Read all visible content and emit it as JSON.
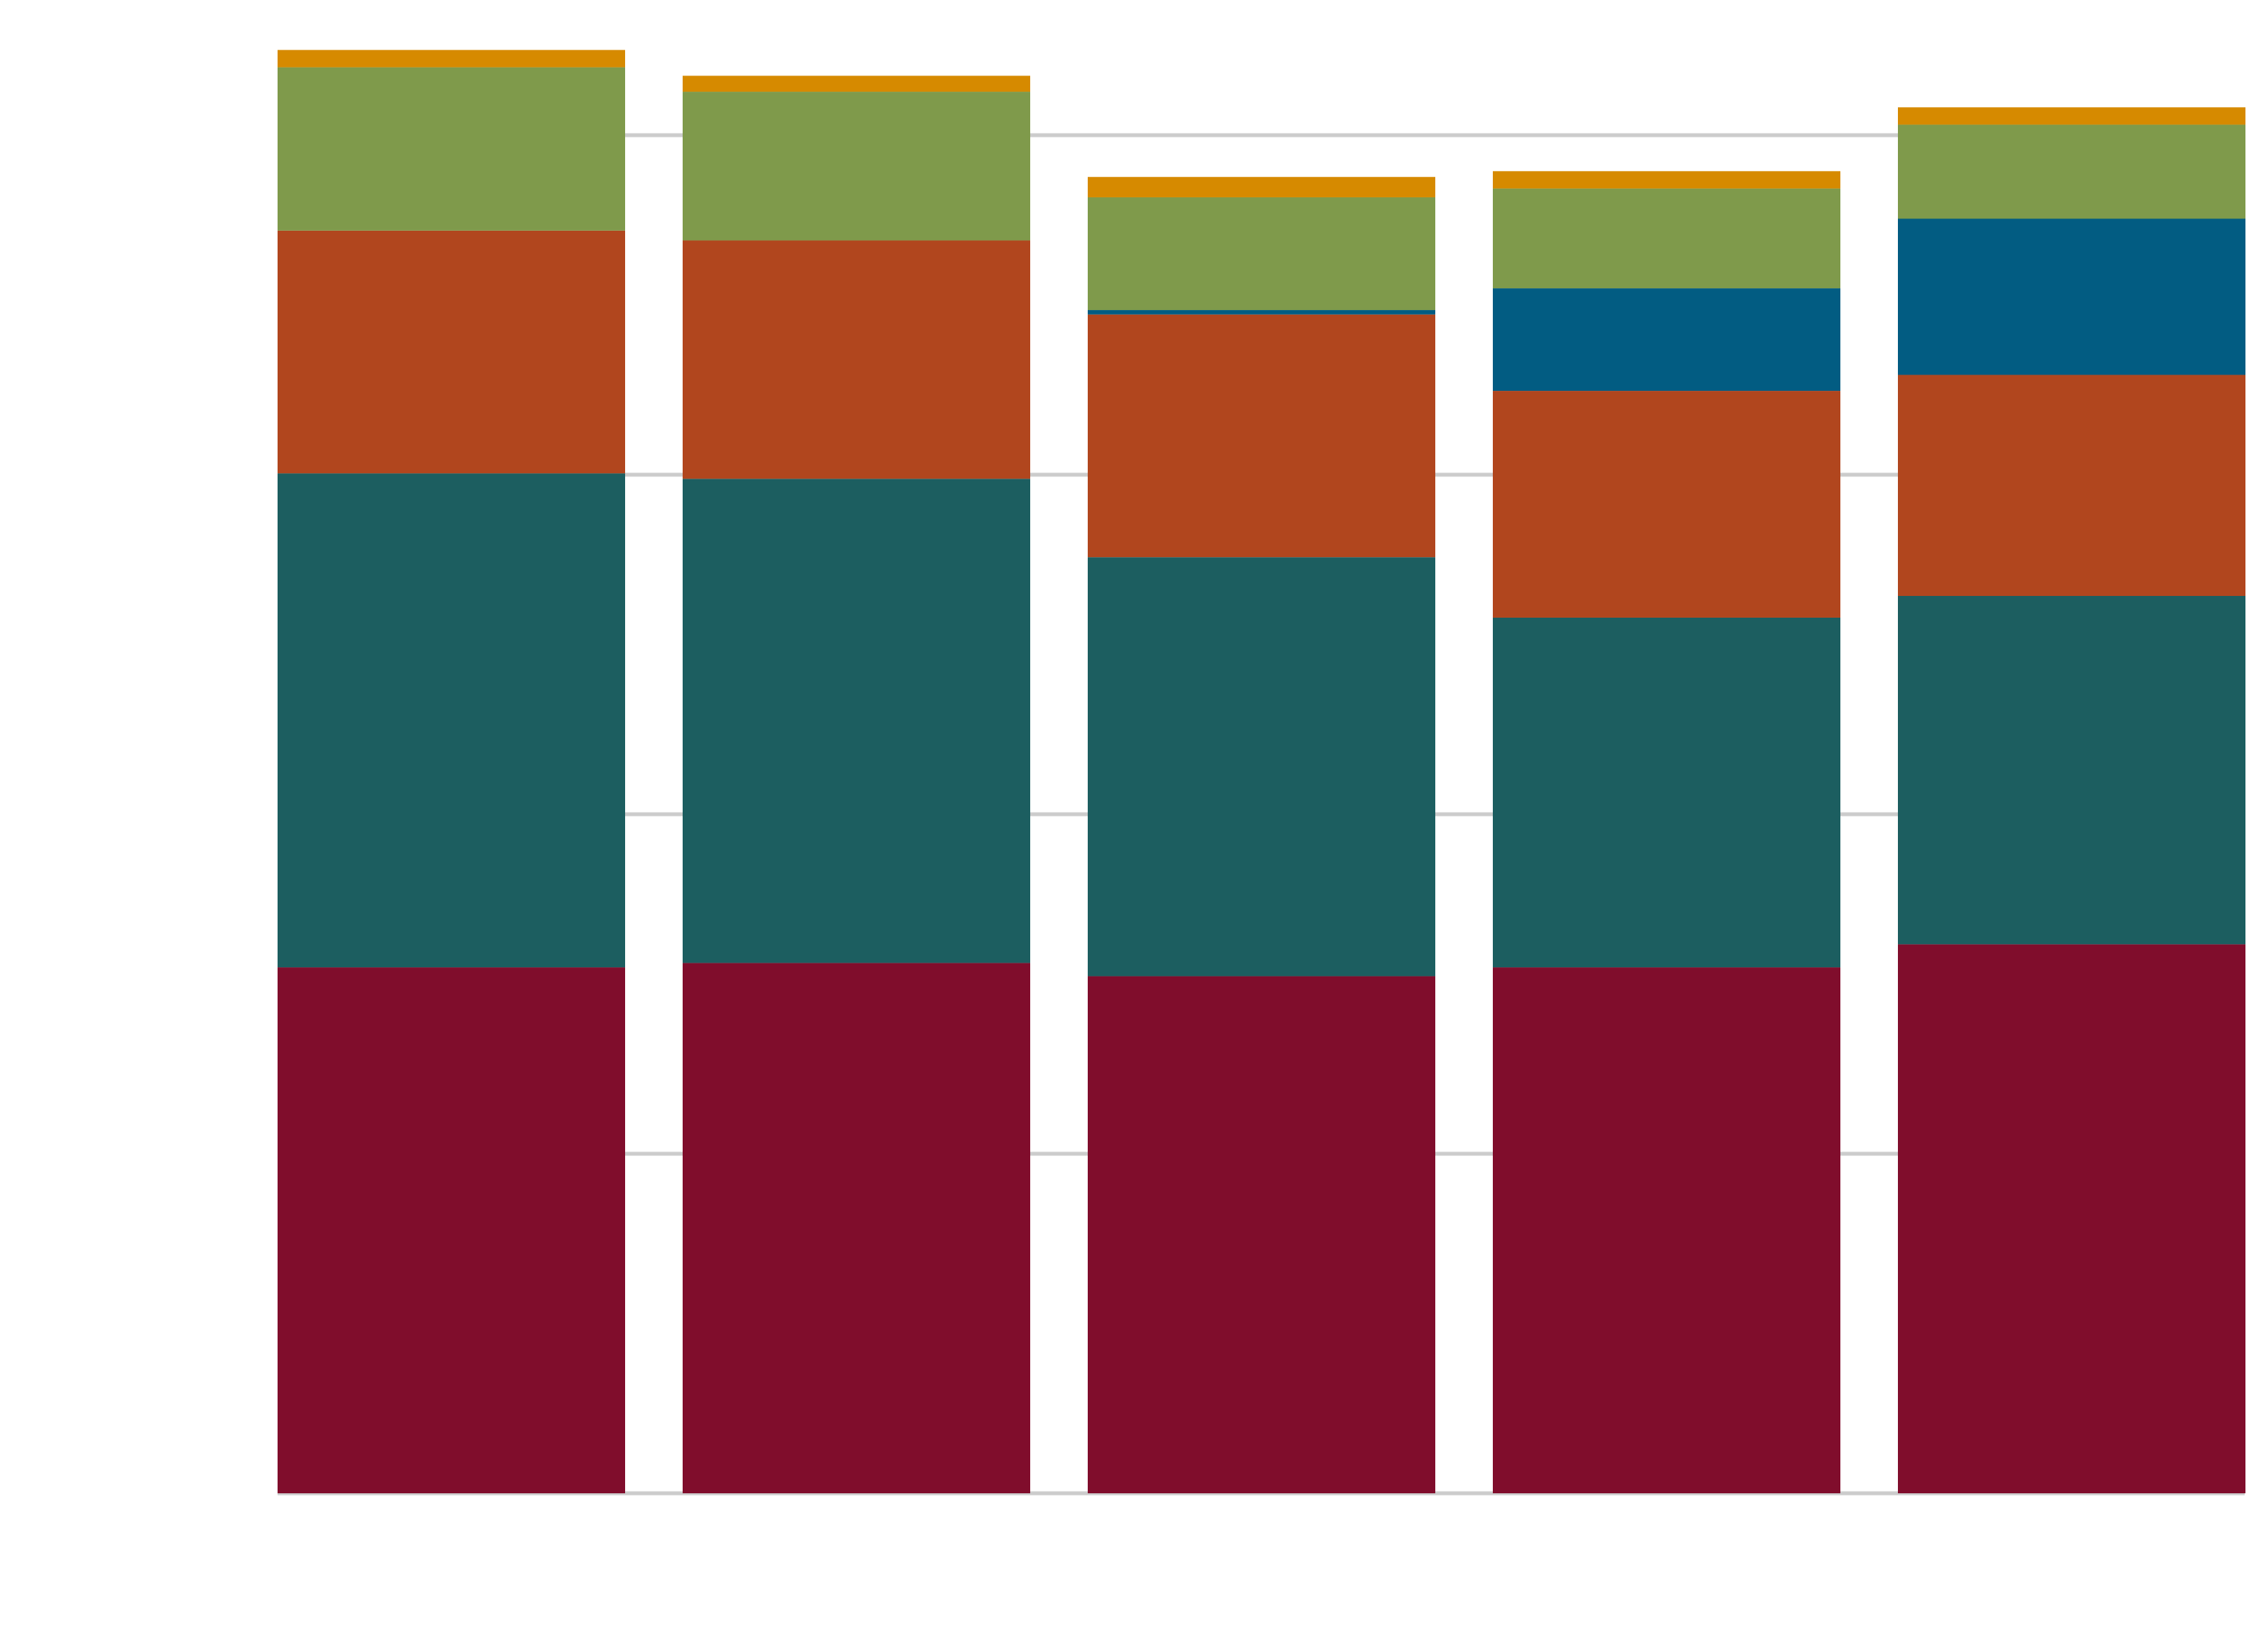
{
  "chart_data": {
    "type": "bar",
    "stacked": true,
    "title": "",
    "xlabel": "",
    "ylabel": "",
    "categories": [
      "",
      "",
      "",
      "",
      ""
    ],
    "ylim": [
      0,
      4.4
    ],
    "grid_y": [
      0,
      1,
      2,
      3,
      4
    ],
    "grid": true,
    "legend": "none",
    "series": [
      {
        "color": "#800d2c",
        "values": [
          1.549,
          1.562,
          1.523,
          1.549,
          1.617
        ]
      },
      {
        "color": "#1c5e60",
        "values": [
          1.455,
          1.426,
          1.234,
          1.03,
          1.026
        ]
      },
      {
        "color": "#b1461e",
        "values": [
          0.715,
          0.702,
          0.715,
          0.668,
          0.651
        ]
      },
      {
        "color": "#025c82",
        "values": [
          0,
          0,
          0.013,
          0.302,
          0.46
        ]
      },
      {
        "color": "#7f9a4b",
        "values": [
          0.481,
          0.438,
          0.332,
          0.294,
          0.277
        ]
      },
      {
        "color": "#d68a00",
        "values": [
          0.051,
          0.047,
          0.06,
          0.051,
          0.051
        ]
      }
    ],
    "gridline_color": "#cccccc"
  }
}
